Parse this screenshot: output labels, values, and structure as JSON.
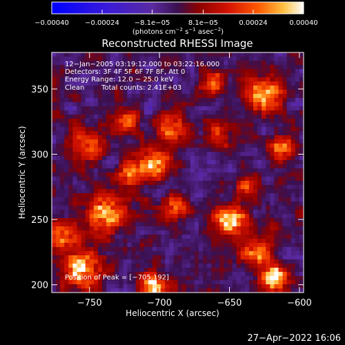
{
  "chart_data": {
    "type": "heatmap",
    "title": "Reconstructed RHESSI Image",
    "xlabel": "Heliocentric X (arcsec)",
    "ylabel": "Heliocentric Y (arcsec)",
    "xlim": [
      -777,
      -597
    ],
    "ylim": [
      194,
      378
    ],
    "x_ticks": [
      {
        "value": -750,
        "label": "−750"
      },
      {
        "value": -700,
        "label": "−700"
      },
      {
        "value": -650,
        "label": "−650"
      },
      {
        "value": -600,
        "label": "−600"
      }
    ],
    "y_ticks": [
      {
        "value": 200,
        "label": "200"
      },
      {
        "value": 250,
        "label": "250"
      },
      {
        "value": 300,
        "label": "300"
      },
      {
        "value": 350,
        "label": "350"
      }
    ],
    "colorbar": {
      "range": [
        -0.0004,
        0.0004
      ],
      "ticks": [
        {
          "value": -0.0004,
          "label": "−0.00040"
        },
        {
          "value": -0.00024,
          "label": "−0.00024"
        },
        {
          "value": -8.1e-05,
          "label": "−8.1e−05"
        },
        {
          "value": 8.1e-05,
          "label": "8.1e−05"
        },
        {
          "value": 0.00024,
          "label": "0.00024"
        },
        {
          "value": 0.0004,
          "label": "0.00040"
        }
      ],
      "units_label": {
        "a": "(photons cm",
        "b": "−2",
        "c": " s",
        "d": "−1",
        "e": " asec",
        "f": "−2",
        "g": ")"
      }
    },
    "annotations": {
      "time_range": "12−Jan−2005 03:19:12.000 to 03:22:16.000",
      "detectors": "Detectors: 3F 4F 5F 6F 7F 8F, Att 0",
      "energy_range": "Energy Range: 12.0 − 25.0 keV",
      "clean_label": "Clean",
      "total_counts": "Total counts: 2.41E+03",
      "peak_position": "Position of Peak = [−705,192]"
    },
    "hot_regions": [
      {
        "x": -755,
        "y": 212,
        "r": 14,
        "v": 0.0004
      },
      {
        "x": -768,
        "y": 238,
        "r": 10,
        "v": 0.0003
      },
      {
        "x": -738,
        "y": 255,
        "r": 14,
        "v": 0.00034
      },
      {
        "x": -722,
        "y": 285,
        "r": 10,
        "v": 0.00026
      },
      {
        "x": -705,
        "y": 292,
        "r": 12,
        "v": 0.0003
      },
      {
        "x": -690,
        "y": 320,
        "r": 12,
        "v": 0.00026
      },
      {
        "x": -725,
        "y": 325,
        "r": 10,
        "v": 0.00024
      },
      {
        "x": -750,
        "y": 308,
        "r": 12,
        "v": 0.00028
      },
      {
        "x": -658,
        "y": 315,
        "r": 10,
        "v": 0.00022
      },
      {
        "x": -625,
        "y": 345,
        "r": 14,
        "v": 0.00034
      },
      {
        "x": -612,
        "y": 305,
        "r": 10,
        "v": 0.00028
      },
      {
        "x": -640,
        "y": 275,
        "r": 8,
        "v": 0.00022
      },
      {
        "x": -650,
        "y": 250,
        "r": 12,
        "v": 0.00036
      },
      {
        "x": -632,
        "y": 225,
        "r": 12,
        "v": 0.0003
      },
      {
        "x": -618,
        "y": 205,
        "r": 10,
        "v": 0.0004
      },
      {
        "x": -705,
        "y": 198,
        "r": 10,
        "v": 0.0004
      },
      {
        "x": -690,
        "y": 260,
        "r": 10,
        "v": 0.00024
      },
      {
        "x": -662,
        "y": 355,
        "r": 10,
        "v": 0.00024
      }
    ]
  },
  "footer": {
    "date": "27−Apr−2022 16:06"
  }
}
